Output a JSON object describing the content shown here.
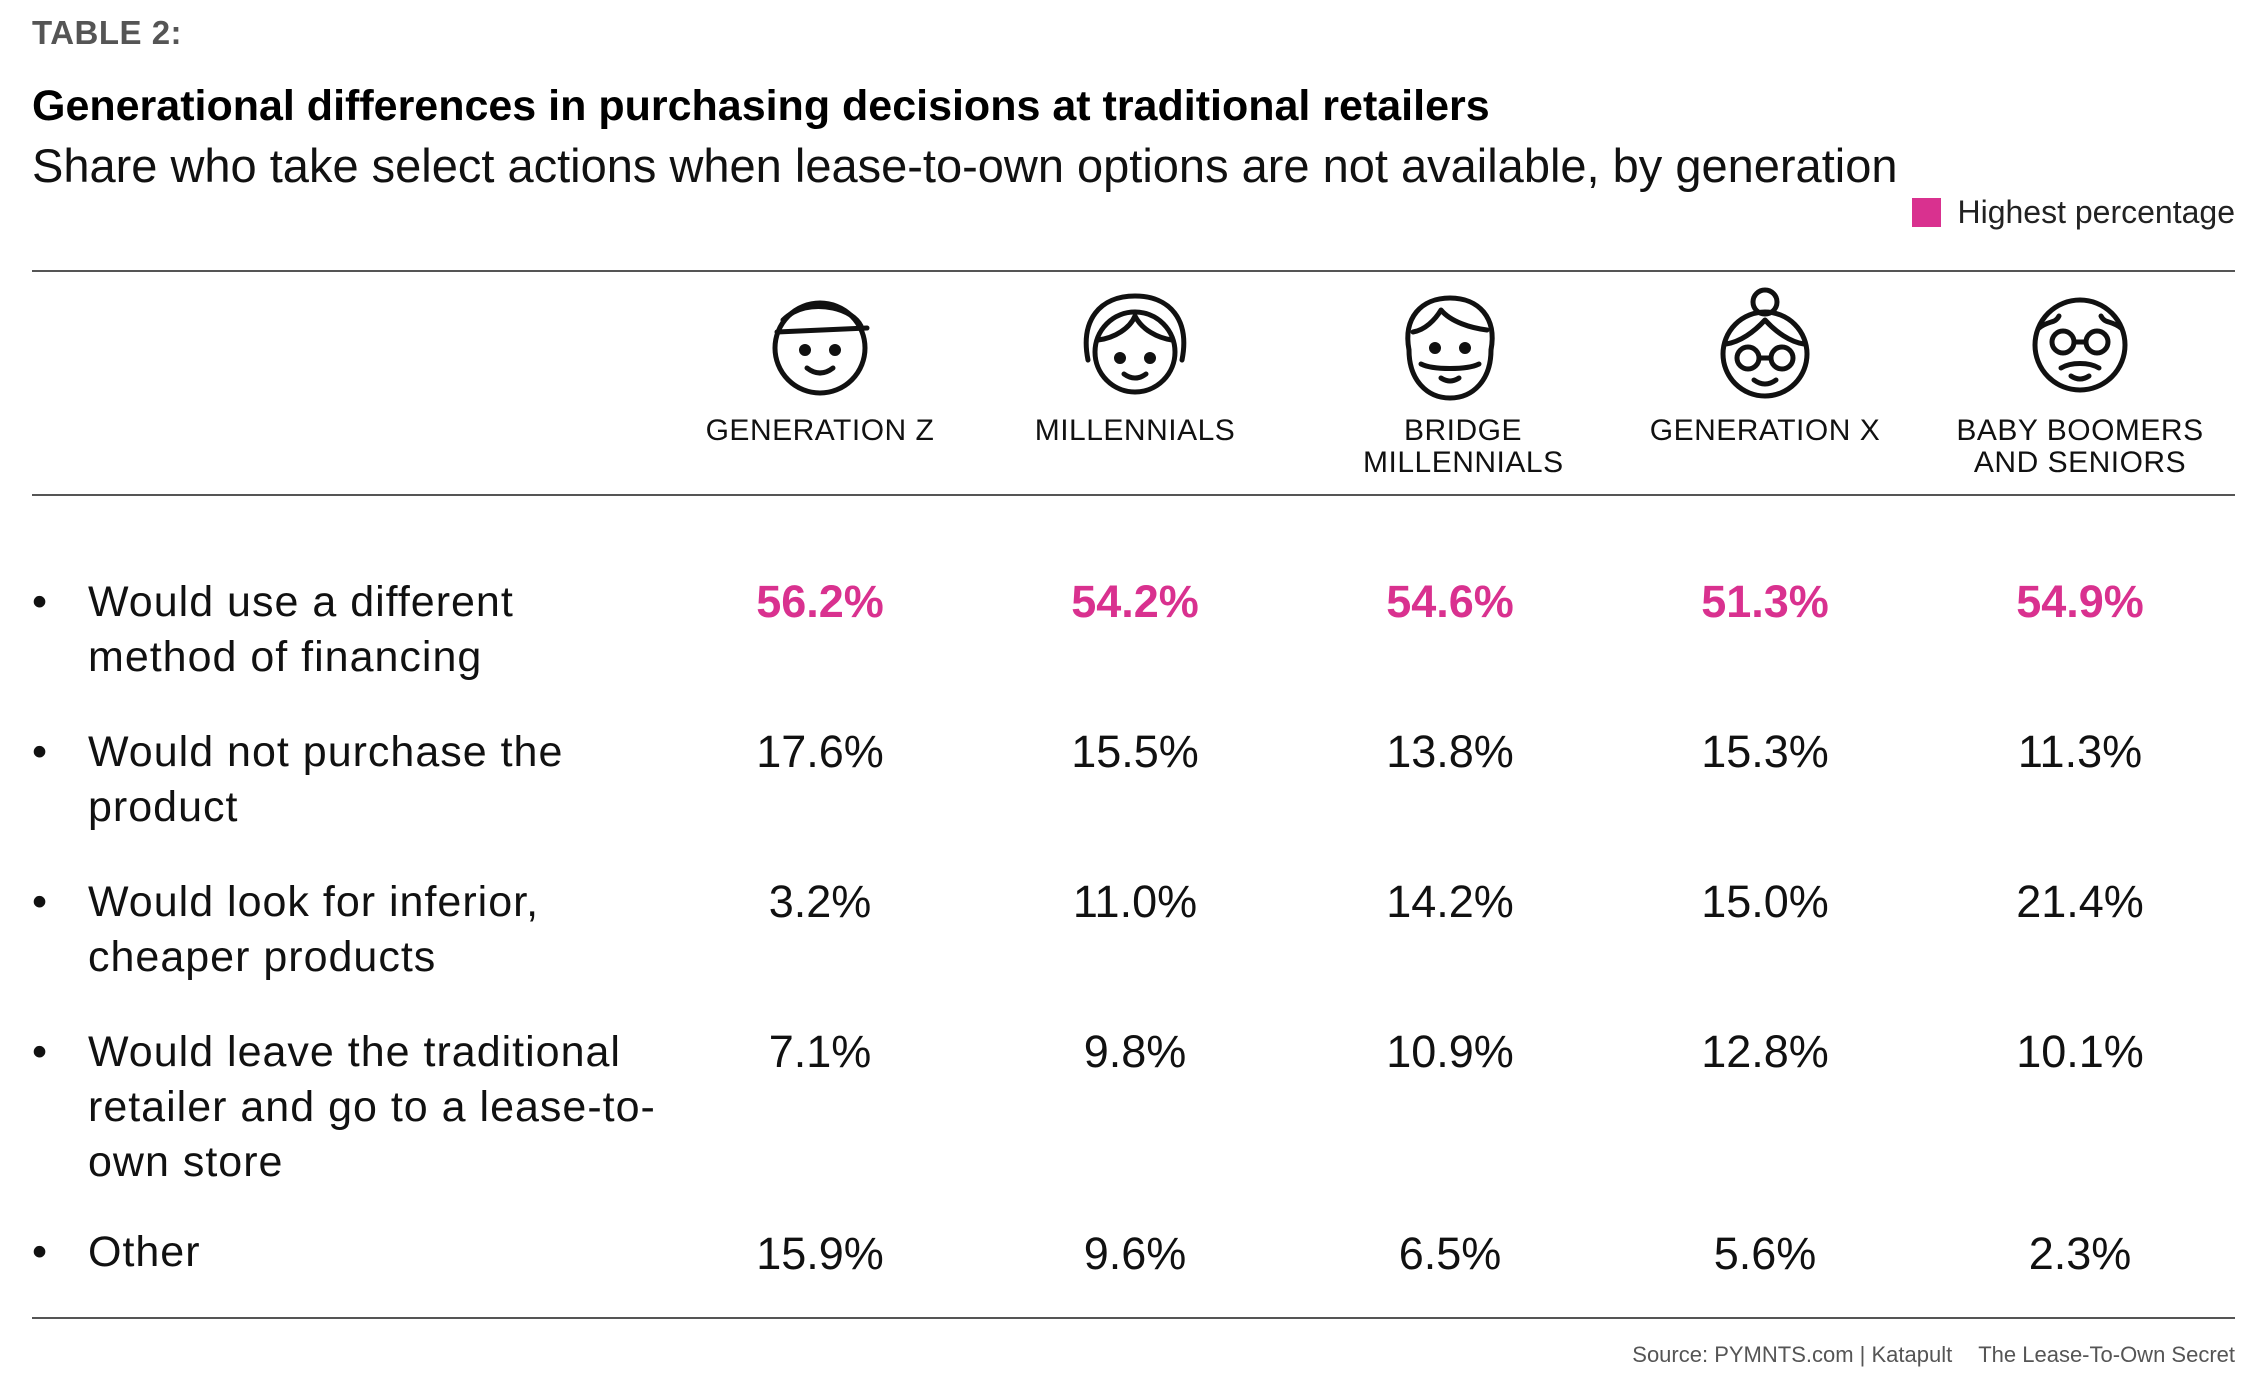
{
  "header": {
    "table_label": "TABLE 2:",
    "title": "Generational differences in purchasing decisions at traditional retailers",
    "subtitle": "Share who take select actions when lease-to-own options are not available, by generation",
    "legend_label": "Highest percentage"
  },
  "colors": {
    "highlight": "#d9318f",
    "text": "#111111",
    "rule": "#555555"
  },
  "columns": [
    {
      "label": "GENERATION Z",
      "icon": "gen-z-face-icon"
    },
    {
      "label": "MILLENNIALS",
      "icon": "millennial-face-icon"
    },
    {
      "label": "BRIDGE MILLENNIALS",
      "icon": "bridge-millennial-face-icon"
    },
    {
      "label": "GENERATION X",
      "icon": "gen-x-face-icon"
    },
    {
      "label": "BABY BOOMERS AND SENIORS",
      "icon": "boomer-face-icon"
    }
  ],
  "chart_data": {
    "type": "table",
    "title": "Generational differences in purchasing decisions at traditional retailers",
    "subtitle": "Share who take select actions when lease-to-own options are not available, by generation",
    "columns": [
      "GENERATION Z",
      "MILLENNIALS",
      "BRIDGE MILLENNIALS",
      "GENERATION X",
      "BABY BOOMERS AND SENIORS"
    ],
    "rows": [
      {
        "label": "Would use a different method of financing",
        "values": [
          "56.2%",
          "54.2%",
          "54.6%",
          "51.3%",
          "54.9%"
        ],
        "highlight": [
          true,
          true,
          true,
          true,
          true
        ]
      },
      {
        "label": "Would not purchase the product",
        "values": [
          "17.6%",
          "15.5%",
          "13.8%",
          "15.3%",
          "11.3%"
        ],
        "highlight": [
          false,
          false,
          false,
          false,
          false
        ]
      },
      {
        "label": "Would look for inferior, cheaper products",
        "values": [
          "3.2%",
          "11.0%",
          "14.2%",
          "15.0%",
          "21.4%"
        ],
        "highlight": [
          false,
          false,
          false,
          false,
          false
        ]
      },
      {
        "label": "Would leave the traditional retailer and go to a lease-to-own store",
        "values": [
          "7.1%",
          "9.8%",
          "10.9%",
          "12.8%",
          "10.1%"
        ],
        "highlight": [
          false,
          false,
          false,
          false,
          false
        ]
      },
      {
        "label": "Other",
        "values": [
          "15.9%",
          "9.6%",
          "6.5%",
          "5.6%",
          "2.3%"
        ],
        "highlight": [
          false,
          false,
          false,
          false,
          false
        ]
      }
    ]
  },
  "footer": {
    "source": "Source: PYMNTS.com | Katapult",
    "report": "The Lease-To-Own Secret"
  }
}
